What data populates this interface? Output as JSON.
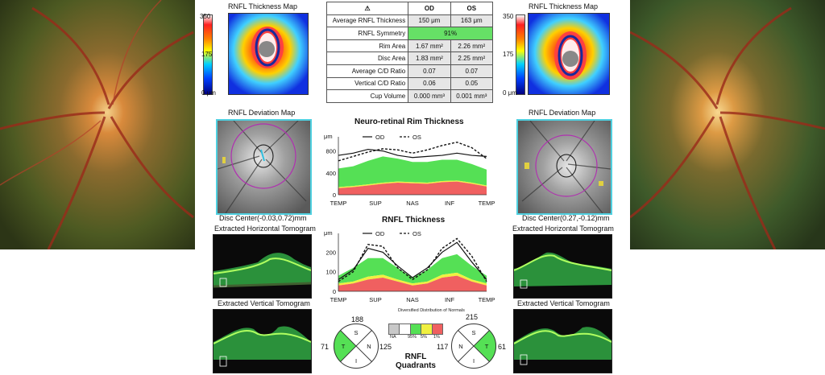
{
  "header": {
    "od_label": "OD",
    "os_label": "OS",
    "warning_symbol": "⚠"
  },
  "metrics": [
    {
      "label": "Average RNFL Thickness",
      "od": "150 μm",
      "os": "163 μm"
    },
    {
      "label": "RNFL Symmetry",
      "both": "91%"
    },
    {
      "label": "Rim Area",
      "od": "1.67 mm²",
      "os": "2.26 mm²"
    },
    {
      "label": "Disc Area",
      "od": "1.83 mm²",
      "os": "2.25 mm²"
    },
    {
      "label": "Average C/D Ratio",
      "od": "0.07",
      "os": "0.07"
    },
    {
      "label": "Vertical C/D Ratio",
      "od": "0.06",
      "os": "0.05"
    },
    {
      "label": "Cup Volume",
      "od": "0.000 mm³",
      "os": "0.001 mm³"
    }
  ],
  "od_panel": {
    "thickness_title": "RNFL Thickness Map",
    "scale_top": "350",
    "scale_mid": "175",
    "scale_bottom": "0 μm",
    "deviation_title": "RNFL Deviation Map",
    "disc_center": "Disc Center(-0.03,0.72)mm",
    "horiz_title": "Extracted Horizontal Tomogram",
    "vert_title": "Extracted Vertical Tomogram"
  },
  "os_panel": {
    "thickness_title": "RNFL Thickness Map",
    "scale_top": "350",
    "scale_mid": "175",
    "scale_bottom": "0 μm",
    "deviation_title": "RNFL Deviation Map",
    "disc_center": "Disc Center(0.27,-0.12)mm",
    "horiz_title": "Extracted Horizontal Tomogram",
    "vert_title": "Extracted Vertical Tomogram"
  },
  "colors": {
    "normal_green": "#55e055",
    "borderline_yellow": "#f0f040",
    "abnormal_red": "#f06060",
    "na_gray": "#c8c8c8",
    "frame_cyan": "#4fd0e0"
  },
  "chart_data": [
    {
      "type": "line",
      "title": "Neuro-retinal Rim Thickness",
      "ylabel": "μm",
      "x_ticks": [
        "TEMP",
        "SUP",
        "NAS",
        "INF",
        "TEMP"
      ],
      "y_ticks": [
        "0",
        "400",
        "800"
      ],
      "ylim": [
        0,
        1000
      ],
      "series": [
        {
          "name": "OD",
          "style": "solid",
          "values": [
            720,
            760,
            830,
            800,
            720,
            680,
            700,
            720,
            760,
            720,
            700
          ]
        },
        {
          "name": "OS",
          "style": "dashed",
          "values": [
            620,
            700,
            780,
            840,
            820,
            760,
            820,
            900,
            960,
            860,
            660
          ]
        }
      ],
      "normative_bands": {
        "red_top": [
          120,
          140,
          170,
          200,
          220,
          210,
          200,
          230,
          240,
          200,
          150
        ],
        "yellow_top": [
          140,
          160,
          190,
          220,
          240,
          230,
          220,
          250,
          260,
          220,
          170
        ],
        "green_top": [
          480,
          520,
          620,
          700,
          660,
          600,
          600,
          640,
          640,
          560,
          460
        ]
      }
    },
    {
      "type": "line",
      "title": "RNFL Thickness",
      "ylabel": "μm",
      "x_ticks": [
        "TEMP",
        "SUP",
        "NAS",
        "INF",
        "TEMP"
      ],
      "y_ticks": [
        "0",
        "100",
        "200"
      ],
      "ylim": [
        0,
        280
      ],
      "series": [
        {
          "name": "OD",
          "style": "solid",
          "values": [
            60,
            110,
            220,
            200,
            130,
            70,
            120,
            200,
            250,
            150,
            60
          ]
        },
        {
          "name": "OS",
          "style": "dashed",
          "values": [
            50,
            100,
            240,
            230,
            120,
            60,
            110,
            220,
            270,
            180,
            50
          ]
        }
      ],
      "normative_bands": {
        "red_top": [
          30,
          40,
          60,
          70,
          50,
          30,
          40,
          70,
          80,
          50,
          30
        ],
        "yellow_top": [
          40,
          50,
          75,
          85,
          60,
          40,
          50,
          85,
          95,
          60,
          40
        ],
        "green_top": [
          80,
          120,
          170,
          170,
          120,
          70,
          110,
          170,
          190,
          130,
          80
        ]
      }
    }
  ],
  "legend": {
    "title": "Diversified Distribution of Normals",
    "labels": [
      "NA",
      "95%",
      "5%",
      "1%"
    ]
  },
  "quadrants": {
    "title_line1": "RNFL",
    "title_line2": "Quadrants",
    "od": {
      "s": "188",
      "t": "71",
      "n": "125",
      "i_label": "I",
      "s_label": "S",
      "t_label": "T",
      "n_label": "N"
    },
    "os": {
      "s": "215",
      "t": "61",
      "n": "117",
      "i_label": "I",
      "s_label": "S",
      "t_label": "T",
      "n_label": "N"
    }
  }
}
